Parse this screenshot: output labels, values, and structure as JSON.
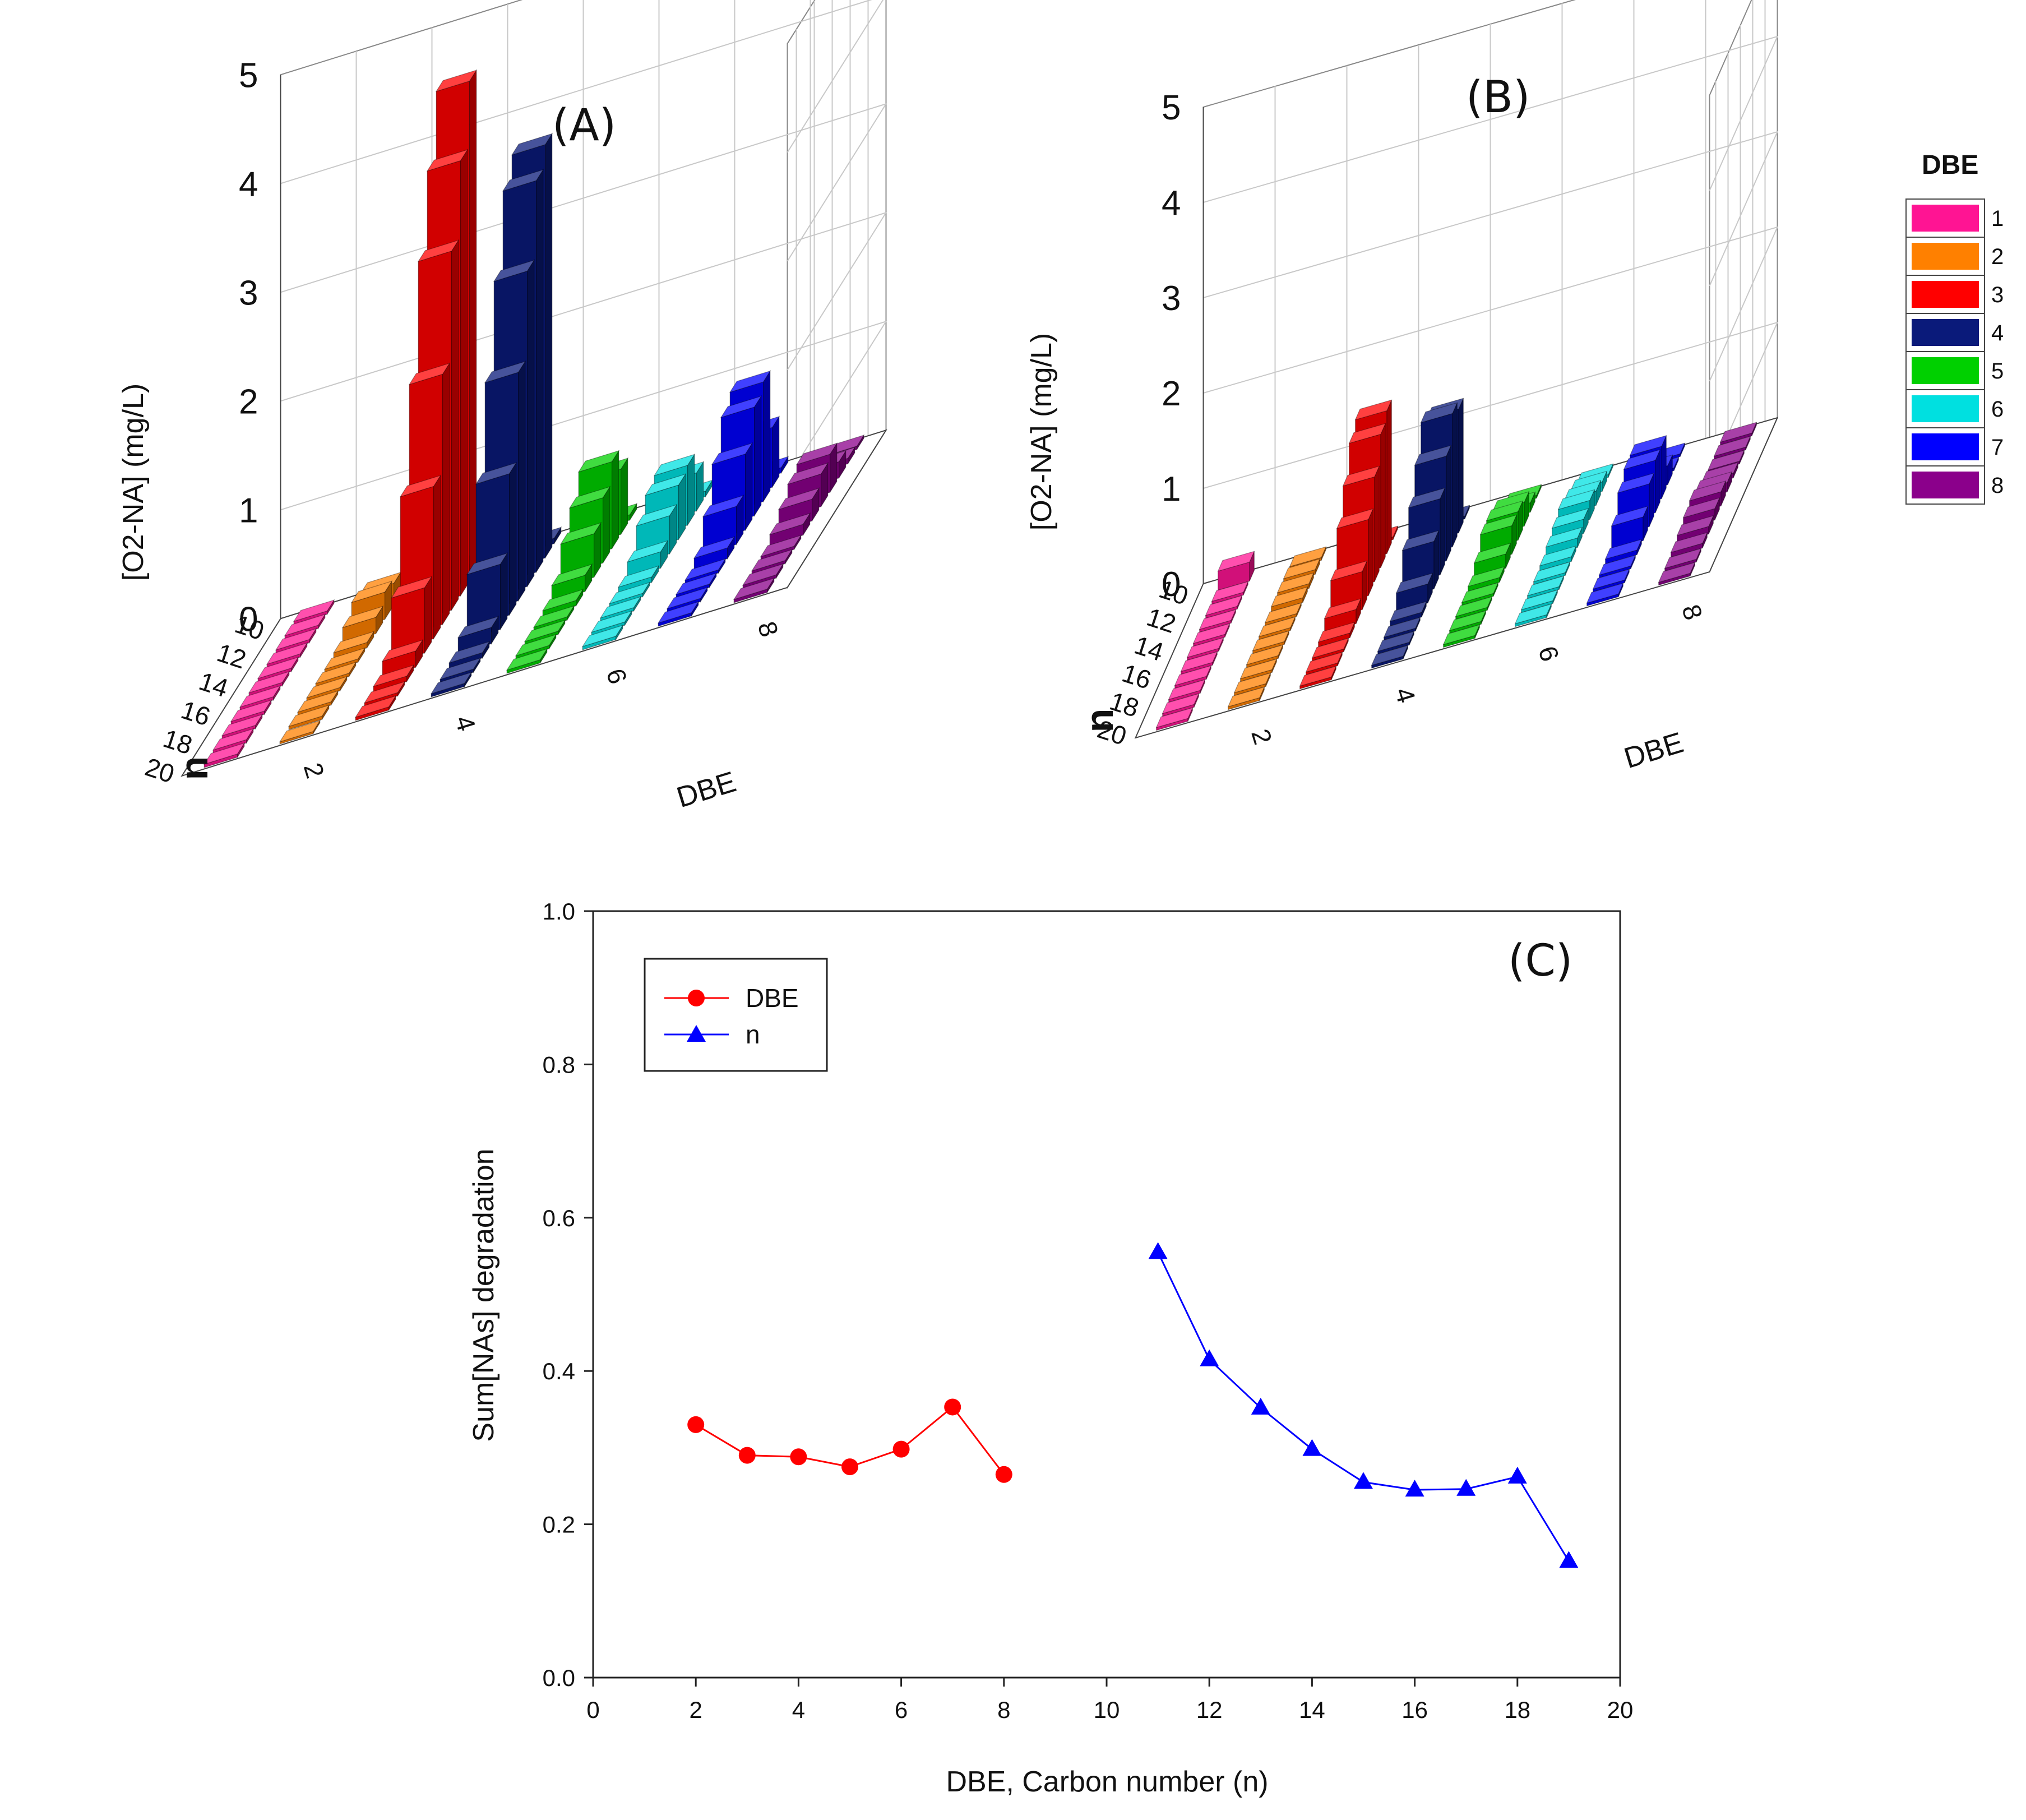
{
  "chart_data": [
    {
      "type": "bar3d",
      "panel_label": "(A)",
      "zlabel": "[O2-NA] (mg/L)",
      "xlabel": "DBE",
      "ylabel": "n",
      "zlim": [
        0,
        5
      ],
      "z_ticks": [
        "0",
        "1",
        "2",
        "3",
        "4",
        "5"
      ],
      "dbe_ticks": [
        "2",
        "4",
        "6",
        "8"
      ],
      "n_ticks": [
        "10",
        "12",
        "14",
        "16",
        "18",
        "20"
      ],
      "n_values": [
        10,
        11,
        12,
        13,
        14,
        15,
        16,
        17,
        18,
        19,
        20
      ],
      "series": [
        {
          "dbe": 1,
          "values": [
            0.03,
            0.03,
            0.03,
            0.03,
            0.03,
            0.03,
            0.03,
            0.03,
            0.03,
            0.03,
            0.03
          ]
        },
        {
          "dbe": 2,
          "values": [
            0.08,
            0.2,
            0.25,
            0.15,
            0.05,
            0.03,
            0.03,
            0.03,
            0.03,
            0.03,
            0.02
          ]
        },
        {
          "dbe": 3,
          "values": [
            0.05,
            4.6,
            4.0,
            3.3,
            2.3,
            1.4,
            0.6,
            0.15,
            0.05,
            0.03,
            0.03
          ]
        },
        {
          "dbe": 4,
          "values": [
            0.05,
            3.8,
            3.6,
            2.9,
            2.1,
            1.3,
            0.6,
            0.15,
            0.05,
            0.03,
            0.03
          ]
        },
        {
          "dbe": 5,
          "values": [
            0.05,
            0.6,
            0.8,
            0.6,
            0.4,
            0.15,
            0.05,
            0.03,
            0.03,
            0.03,
            0.03
          ]
        },
        {
          "dbe": 6,
          "values": [
            0.05,
            0.35,
            0.55,
            0.5,
            0.35,
            0.15,
            0.05,
            0.03,
            0.03,
            0.03,
            0.03
          ]
        },
        {
          "dbe": 7,
          "values": [
            0.05,
            0.55,
            1.1,
            1.0,
            0.7,
            0.35,
            0.1,
            0.03,
            0.03,
            0.03,
            0.03
          ]
        },
        {
          "dbe": 8,
          "values": [
            0.03,
            0.05,
            0.15,
            0.35,
            0.3,
            0.2,
            0.1,
            0.03,
            0.03,
            0.03,
            0.03
          ]
        }
      ]
    },
    {
      "type": "bar3d",
      "panel_label": "(B)",
      "zlabel": "[O2-NA] (mg/L)",
      "xlabel": "DBE",
      "ylabel": "n",
      "zlim": [
        0,
        5
      ],
      "z_ticks": [
        "0",
        "1",
        "2",
        "3",
        "4",
        "5"
      ],
      "dbe_ticks": [
        "2",
        "4",
        "6",
        "8"
      ],
      "n_ticks": [
        "10",
        "12",
        "14",
        "16",
        "18",
        "20"
      ],
      "n_values": [
        10,
        11,
        12,
        13,
        14,
        15,
        16,
        17,
        18,
        19,
        20
      ],
      "series": [
        {
          "dbe": 1,
          "values": [
            0.2,
            0.03,
            0.03,
            0.03,
            0.03,
            0.03,
            0.03,
            0.03,
            0.03,
            0.03,
            0.03
          ]
        },
        {
          "dbe": 2,
          "values": [
            0.03,
            0.05,
            0.05,
            0.05,
            0.03,
            0.03,
            0.03,
            0.03,
            0.03,
            0.03,
            0.03
          ]
        },
        {
          "dbe": 3,
          "values": [
            0.03,
            1.5,
            1.4,
            1.1,
            0.8,
            0.4,
            0.15,
            0.05,
            0.03,
            0.03,
            0.03
          ]
        },
        {
          "dbe": 4,
          "values": [
            0.03,
            1.3,
            1.4,
            1.1,
            0.8,
            0.5,
            0.2,
            0.05,
            0.03,
            0.03,
            0.03
          ]
        },
        {
          "dbe": 5,
          "values": [
            0.03,
            0.1,
            0.25,
            0.3,
            0.3,
            0.15,
            0.05,
            0.03,
            0.03,
            0.03,
            0.03
          ]
        },
        {
          "dbe": 6,
          "values": [
            0.03,
            0.1,
            0.15,
            0.2,
            0.15,
            0.1,
            0.05,
            0.03,
            0.03,
            0.03,
            0.03
          ]
        },
        {
          "dbe": 7,
          "values": [
            0.03,
            0.03,
            0.2,
            0.55,
            0.55,
            0.45,
            0.25,
            0.05,
            0.03,
            0.03,
            0.03
          ]
        },
        {
          "dbe": 8,
          "values": [
            0.03,
            0.03,
            0.03,
            0.05,
            0.1,
            0.15,
            0.12,
            0.08,
            0.05,
            0.03,
            0.03
          ]
        }
      ]
    },
    {
      "type": "line",
      "panel_label": "(C)",
      "xlabel": "DBE, Carbon number (n)",
      "ylabel": "Sum[NAs] degradation",
      "xlim": [
        0,
        20
      ],
      "ylim": [
        0,
        1.0
      ],
      "x_ticks": [
        "0",
        "2",
        "4",
        "6",
        "8",
        "10",
        "12",
        "14",
        "16",
        "18",
        "20"
      ],
      "y_ticks": [
        "0.0",
        "0.2",
        "0.4",
        "0.6",
        "0.8",
        "1.0"
      ],
      "series": [
        {
          "name": "DBE",
          "color": "#ff0000",
          "marker": "circle",
          "x": [
            2,
            3,
            4,
            5,
            6,
            7,
            8
          ],
          "y": [
            0.33,
            0.29,
            0.288,
            0.275,
            0.298,
            0.353,
            0.265
          ]
        },
        {
          "name": "n",
          "color": "#0000ff",
          "marker": "triangle",
          "x": [
            11,
            12,
            13,
            14,
            15,
            16,
            17,
            18,
            19
          ],
          "y": [
            0.555,
            0.415,
            0.352,
            0.298,
            0.255,
            0.245,
            0.246,
            0.262,
            0.152
          ]
        }
      ]
    }
  ],
  "legend": {
    "title": "DBE",
    "items": [
      {
        "label": "1",
        "color": "#ff1493"
      },
      {
        "label": "2",
        "color": "#ff8000"
      },
      {
        "label": "3",
        "color": "#ff0000"
      },
      {
        "label": "4",
        "color": "#0a1a7a"
      },
      {
        "label": "5",
        "color": "#00d000"
      },
      {
        "label": "6",
        "color": "#00e0e0"
      },
      {
        "label": "7",
        "color": "#0000ff"
      },
      {
        "label": "8",
        "color": "#8b008b"
      }
    ]
  }
}
